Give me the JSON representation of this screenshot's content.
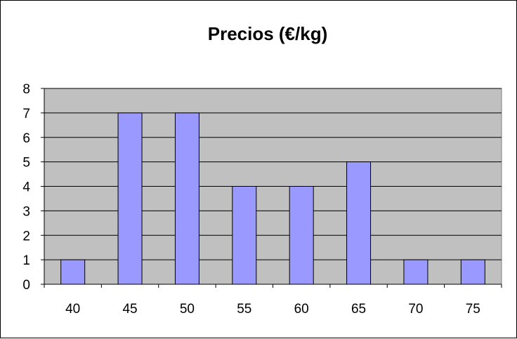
{
  "chart_data": {
    "type": "bar",
    "title": "Precios (€/kg)",
    "categories": [
      "40",
      "45",
      "50",
      "55",
      "60",
      "65",
      "70",
      "75"
    ],
    "values": [
      1,
      7,
      7,
      4,
      4,
      5,
      1,
      1
    ],
    "ylim": [
      0,
      8
    ],
    "y_ticks": [
      "0",
      "1",
      "2",
      "3",
      "4",
      "5",
      "6",
      "7",
      "8"
    ],
    "grid": true,
    "legend": "none",
    "colors": {
      "bar_fill": "#9999ff",
      "plot_background": "#c0c0c0",
      "gridline": "#000000"
    }
  }
}
